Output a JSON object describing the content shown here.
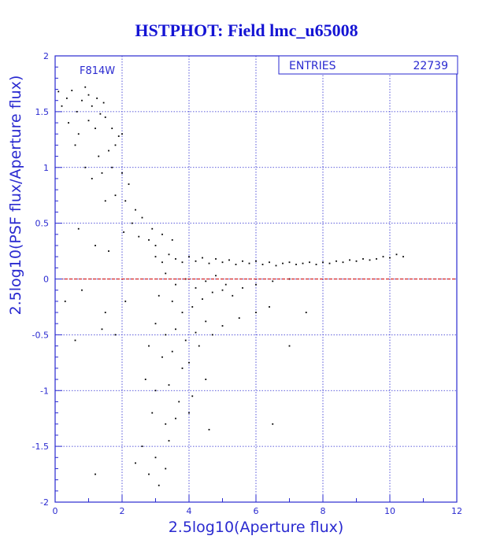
{
  "chart_data": {
    "type": "scatter",
    "title": "HSTPHOT: Field lmc_u65008",
    "xlabel": "2.5log10(Aperture flux)",
    "ylabel": "2.5log10(PSF flux/Aperture flux)",
    "xlim": [
      0,
      12
    ],
    "ylim": [
      -2,
      2
    ],
    "x_ticks": [
      "0",
      "2",
      "4",
      "6",
      "8",
      "10",
      "12"
    ],
    "y_ticks": [
      "-2",
      "-1.5",
      "-1",
      "-0.5",
      "0",
      "0.5",
      "1",
      "1.5",
      "2"
    ],
    "grid": true,
    "reference_line": {
      "y": 0,
      "color": "#cc0000",
      "style": "dashed"
    },
    "annotation": "F814W",
    "stats_box": {
      "label": "ENTRIES",
      "value": "22739"
    },
    "colors": {
      "axis": "#2a2ad0",
      "grid": "#2a2ad0",
      "title": "#1414d4",
      "points": "#000000"
    },
    "points": [
      [
        0.1,
        1.68
      ],
      [
        0.2,
        1.55
      ],
      [
        0.35,
        1.62
      ],
      [
        0.5,
        1.69
      ],
      [
        0.65,
        1.5
      ],
      [
        0.8,
        1.6
      ],
      [
        0.9,
        1.72
      ],
      [
        1.0,
        1.65
      ],
      [
        1.1,
        1.55
      ],
      [
        1.25,
        1.62
      ],
      [
        1.35,
        1.48
      ],
      [
        1.45,
        1.58
      ],
      [
        0.4,
        1.4
      ],
      [
        0.7,
        1.3
      ],
      [
        1.0,
        1.42
      ],
      [
        1.2,
        1.35
      ],
      [
        1.5,
        1.45
      ],
      [
        1.7,
        1.35
      ],
      [
        1.9,
        1.28
      ],
      [
        0.6,
        1.2
      ],
      [
        1.3,
        1.1
      ],
      [
        1.6,
        1.15
      ],
      [
        1.8,
        1.2
      ],
      [
        2.0,
        1.3
      ],
      [
        0.9,
        1.0
      ],
      [
        1.1,
        0.9
      ],
      [
        1.4,
        0.95
      ],
      [
        1.7,
        1.0
      ],
      [
        2.0,
        0.95
      ],
      [
        2.2,
        0.85
      ],
      [
        1.5,
        0.7
      ],
      [
        1.8,
        0.75
      ],
      [
        2.1,
        0.7
      ],
      [
        2.4,
        0.62
      ],
      [
        2.6,
        0.55
      ],
      [
        2.3,
        0.5
      ],
      [
        1.2,
        0.3
      ],
      [
        1.6,
        0.25
      ],
      [
        0.7,
        0.45
      ],
      [
        2.05,
        0.42
      ],
      [
        2.5,
        0.38
      ],
      [
        2.8,
        0.35
      ],
      [
        3.0,
        0.3
      ],
      [
        2.9,
        0.45
      ],
      [
        3.2,
        0.4
      ],
      [
        3.5,
        0.35
      ],
      [
        3.0,
        0.2
      ],
      [
        3.2,
        0.15
      ],
      [
        3.4,
        0.22
      ],
      [
        3.6,
        0.18
      ],
      [
        3.8,
        0.15
      ],
      [
        4.0,
        0.2
      ],
      [
        4.2,
        0.16
      ],
      [
        4.4,
        0.19
      ],
      [
        4.6,
        0.14
      ],
      [
        4.8,
        0.18
      ],
      [
        5.0,
        0.15
      ],
      [
        5.2,
        0.17
      ],
      [
        5.4,
        0.13
      ],
      [
        5.6,
        0.16
      ],
      [
        5.8,
        0.14
      ],
      [
        6.0,
        0.16
      ],
      [
        6.2,
        0.13
      ],
      [
        6.4,
        0.15
      ],
      [
        6.6,
        0.12
      ],
      [
        6.8,
        0.14
      ],
      [
        7.0,
        0.15
      ],
      [
        7.2,
        0.13
      ],
      [
        7.4,
        0.14
      ],
      [
        7.6,
        0.15
      ],
      [
        7.8,
        0.13
      ],
      [
        8.0,
        0.15
      ],
      [
        8.2,
        0.14
      ],
      [
        8.4,
        0.16
      ],
      [
        8.6,
        0.15
      ],
      [
        8.8,
        0.17
      ],
      [
        9.0,
        0.16
      ],
      [
        9.2,
        0.18
      ],
      [
        9.4,
        0.17
      ],
      [
        9.6,
        0.18
      ],
      [
        9.8,
        0.2
      ],
      [
        10.0,
        0.19
      ],
      [
        10.2,
        0.22
      ],
      [
        10.4,
        0.2
      ],
      [
        3.3,
        0.05
      ],
      [
        3.6,
        -0.05
      ],
      [
        3.9,
        0.0
      ],
      [
        4.2,
        -0.08
      ],
      [
        4.5,
        -0.02
      ],
      [
        4.8,
        0.03
      ],
      [
        5.1,
        -0.05
      ],
      [
        3.1,
        -0.15
      ],
      [
        3.5,
        -0.2
      ],
      [
        3.8,
        -0.3
      ],
      [
        4.1,
        -0.25
      ],
      [
        4.4,
        -0.18
      ],
      [
        4.7,
        -0.12
      ],
      [
        5.0,
        -0.1
      ],
      [
        5.3,
        -0.15
      ],
      [
        5.6,
        -0.08
      ],
      [
        6.0,
        -0.05
      ],
      [
        6.5,
        -0.02
      ],
      [
        7.0,
        0.0
      ],
      [
        3.0,
        -0.4
      ],
      [
        3.3,
        -0.5
      ],
      [
        3.6,
        -0.45
      ],
      [
        3.9,
        -0.55
      ],
      [
        4.2,
        -0.48
      ],
      [
        4.5,
        -0.38
      ],
      [
        2.8,
        -0.6
      ],
      [
        3.2,
        -0.7
      ],
      [
        3.5,
        -0.65
      ],
      [
        3.8,
        -0.8
      ],
      [
        4.0,
        -0.75
      ],
      [
        4.3,
        -0.6
      ],
      [
        4.7,
        -0.5
      ],
      [
        5.0,
        -0.42
      ],
      [
        5.5,
        -0.35
      ],
      [
        6.0,
        -0.3
      ],
      [
        6.4,
        -0.25
      ],
      [
        2.7,
        -0.9
      ],
      [
        3.0,
        -1.0
      ],
      [
        3.4,
        -0.95
      ],
      [
        3.7,
        -1.1
      ],
      [
        4.1,
        -1.05
      ],
      [
        4.5,
        -0.9
      ],
      [
        2.9,
        -1.2
      ],
      [
        3.3,
        -1.3
      ],
      [
        3.6,
        -1.25
      ],
      [
        4.0,
        -1.2
      ],
      [
        4.6,
        -1.35
      ],
      [
        2.6,
        -1.5
      ],
      [
        3.0,
        -1.6
      ],
      [
        3.4,
        -1.45
      ],
      [
        2.8,
        -1.75
      ],
      [
        3.1,
        -1.85
      ],
      [
        3.3,
        -1.7
      ],
      [
        1.2,
        -1.75
      ],
      [
        2.4,
        -1.65
      ],
      [
        6.5,
        -1.3
      ],
      [
        7.0,
        -0.6
      ],
      [
        7.5,
        -0.3
      ],
      [
        0.3,
        -0.2
      ],
      [
        0.8,
        -0.1
      ],
      [
        1.5,
        -0.3
      ],
      [
        1.8,
        -0.5
      ],
      [
        2.1,
        -0.2
      ],
      [
        0.6,
        -0.55
      ],
      [
        1.4,
        -0.45
      ]
    ]
  }
}
